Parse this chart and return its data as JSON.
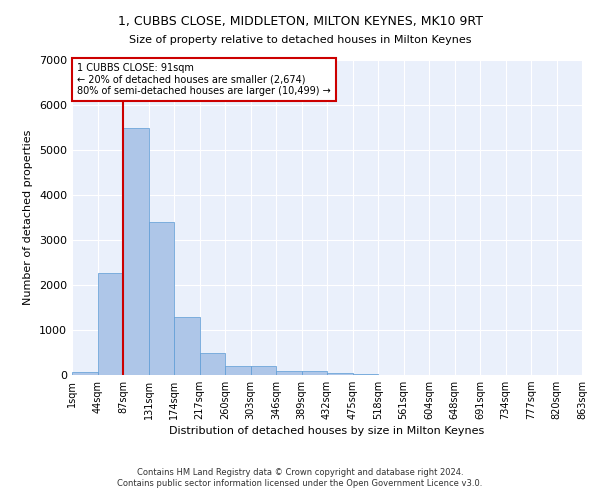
{
  "title": "1, CUBBS CLOSE, MIDDLETON, MILTON KEYNES, MK10 9RT",
  "subtitle": "Size of property relative to detached houses in Milton Keynes",
  "xlabel": "Distribution of detached houses by size in Milton Keynes",
  "ylabel": "Number of detached properties",
  "footer_line1": "Contains HM Land Registry data © Crown copyright and database right 2024.",
  "footer_line2": "Contains public sector information licensed under the Open Government Licence v3.0.",
  "annotation_line1": "1 CUBBS CLOSE: 91sqm",
  "annotation_line2": "← 20% of detached houses are smaller (2,674)",
  "annotation_line3": "80% of semi-detached houses are larger (10,499) →",
  "bar_values": [
    70,
    2270,
    5480,
    3400,
    1300,
    500,
    200,
    200,
    100,
    80,
    50,
    30,
    10,
    5,
    3,
    2,
    1,
    1,
    0,
    0
  ],
  "x_labels": [
    "1sqm",
    "44sqm",
    "87sqm",
    "131sqm",
    "174sqm",
    "217sqm",
    "260sqm",
    "303sqm",
    "346sqm",
    "389sqm",
    "432sqm",
    "475sqm",
    "518sqm",
    "561sqm",
    "604sqm",
    "648sqm",
    "691sqm",
    "734sqm",
    "777sqm",
    "820sqm",
    "863sqm"
  ],
  "ylim": [
    0,
    7000
  ],
  "bar_color": "#aec6e8",
  "bar_edge_color": "#5b9bd5",
  "line_color": "#cc0000",
  "line_x_index": 2,
  "bg_color": "#eaf0fb",
  "grid_color": "#ffffff",
  "annotation_box_color": "#ffffff",
  "annotation_box_edge": "#cc0000"
}
